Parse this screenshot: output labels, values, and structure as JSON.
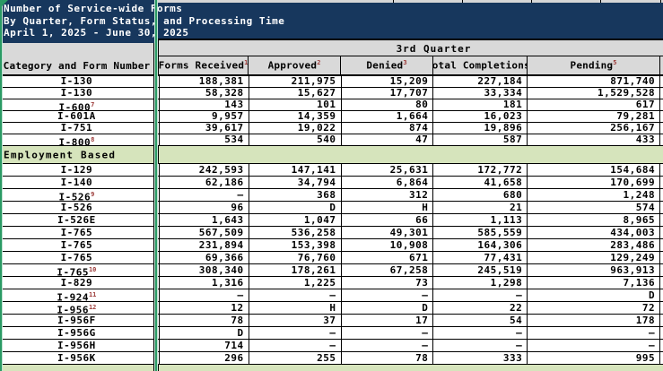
{
  "title_box": {
    "line1": "Number of Service-wide Forms",
    "line2": "By Quarter, Form Status, and Processing Time",
    "line3": "April 1, 2025 - June 30, 2025"
  },
  "quarter_header": "3rd Quarter",
  "columns": {
    "category": "Category and Form Number",
    "cols": [
      {
        "label": "Forms Received",
        "sup": "1"
      },
      {
        "label": "Approved",
        "sup": "2"
      },
      {
        "label": "Denied",
        "sup": "3"
      },
      {
        "label": "Total Completions",
        "sup": "4"
      },
      {
        "label": "Pending",
        "sup": "5"
      }
    ]
  },
  "table": {
    "rows": [
      {
        "type": "data",
        "form": "I-130",
        "sup": "",
        "values": [
          "188,381",
          "211,975",
          "15,209",
          "227,184",
          "871,740"
        ]
      },
      {
        "type": "data",
        "form": "I-130",
        "sup": "",
        "values": [
          "58,328",
          "15,627",
          "17,707",
          "33,334",
          "1,529,528"
        ]
      },
      {
        "type": "data",
        "form": "I-600",
        "sup": "7",
        "values": [
          "143",
          "101",
          "80",
          "181",
          "617"
        ]
      },
      {
        "type": "data",
        "form": "I-601A",
        "sup": "",
        "values": [
          "9,957",
          "14,359",
          "1,664",
          "16,023",
          "79,281"
        ]
      },
      {
        "type": "data",
        "form": "I-751",
        "sup": "",
        "values": [
          "39,617",
          "19,022",
          "874",
          "19,896",
          "256,167"
        ]
      },
      {
        "type": "data",
        "form": "I-800",
        "sup": "8",
        "values": [
          "534",
          "540",
          "47",
          "587",
          "433"
        ]
      },
      {
        "type": "section",
        "label": "Employment Based"
      },
      {
        "type": "data",
        "form": "I-129",
        "sup": "",
        "values": [
          "242,593",
          "147,141",
          "25,631",
          "172,772",
          "154,684"
        ]
      },
      {
        "type": "data",
        "form": "I-140",
        "sup": "",
        "values": [
          "62,186",
          "34,794",
          "6,864",
          "41,658",
          "170,699"
        ]
      },
      {
        "type": "data",
        "form": "I-526",
        "sup": "9",
        "values": [
          "–",
          "368",
          "312",
          "680",
          "1,248"
        ]
      },
      {
        "type": "data",
        "form": "I-526",
        "sup": "",
        "values": [
          "96",
          "D",
          "H",
          "21",
          "574"
        ]
      },
      {
        "type": "data",
        "form": "I-526E",
        "sup": "",
        "values": [
          "1,643",
          "1,047",
          "66",
          "1,113",
          "8,965"
        ]
      },
      {
        "type": "data",
        "form": "I-765",
        "sup": "",
        "values": [
          "567,509",
          "536,258",
          "49,301",
          "585,559",
          "434,003"
        ]
      },
      {
        "type": "data",
        "form": "I-765",
        "sup": "",
        "values": [
          "231,894",
          "153,398",
          "10,908",
          "164,306",
          "283,486"
        ]
      },
      {
        "type": "data",
        "form": "I-765",
        "sup": "",
        "values": [
          "69,366",
          "76,760",
          "671",
          "77,431",
          "129,249"
        ]
      },
      {
        "type": "data",
        "form": "I-765",
        "sup": "10",
        "values": [
          "308,340",
          "178,261",
          "67,258",
          "245,519",
          "963,913"
        ]
      },
      {
        "type": "data",
        "form": "I-829",
        "sup": "",
        "values": [
          "1,316",
          "1,225",
          "73",
          "1,298",
          "7,136"
        ]
      },
      {
        "type": "data",
        "form": "I-924",
        "sup": "11",
        "values": [
          "–",
          "–",
          "–",
          "–",
          "D"
        ]
      },
      {
        "type": "data",
        "form": "I-956",
        "sup": "12",
        "values": [
          "12",
          "H",
          "D",
          "22",
          "72"
        ]
      },
      {
        "type": "data",
        "form": "I-956F",
        "sup": "",
        "values": [
          "78",
          "37",
          "17",
          "54",
          "178"
        ]
      },
      {
        "type": "data",
        "form": "I-956G",
        "sup": "",
        "values": [
          "D",
          "–",
          "–",
          "–",
          "–"
        ]
      },
      {
        "type": "data",
        "form": "I-956H",
        "sup": "",
        "values": [
          "714",
          "–",
          "–",
          "–",
          "–"
        ]
      },
      {
        "type": "data",
        "form": "I-956K",
        "sup": "",
        "values": [
          "296",
          "255",
          "78",
          "333",
          "995"
        ]
      },
      {
        "type": "section",
        "label": ""
      }
    ]
  },
  "colors": {
    "title_box_navy": "#17375D",
    "freeze_pane_green": "#2A9A64",
    "section_row_green": "#D6E4BC",
    "header_gray": "#D9D9D9",
    "footnote_red": "#9C3A38"
  }
}
